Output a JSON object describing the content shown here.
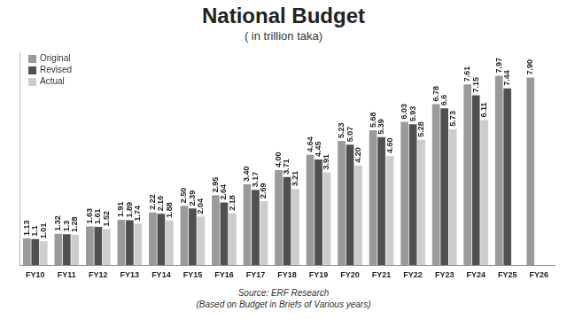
{
  "chart_data": {
    "type": "bar",
    "title": "National Budget",
    "subtitle": "( in trillion taka)",
    "annotations": [
      "Source: ERF Research",
      "(Based on Budget in Briefs of Various years)"
    ],
    "categories": [
      "FY10",
      "FY11",
      "FY12",
      "FY13",
      "FY14",
      "FY15",
      "FY16",
      "FY17",
      "FY18",
      "FY19",
      "FY20",
      "FY21",
      "FY22",
      "FY23",
      "FY24",
      "FY25",
      "FY26"
    ],
    "series": [
      {
        "name": "Original",
        "color": "#9a9a9a",
        "values": [
          1.13,
          1.32,
          1.63,
          1.91,
          2.22,
          2.5,
          2.95,
          3.4,
          4.0,
          4.64,
          5.23,
          5.68,
          6.03,
          6.78,
          7.61,
          7.97,
          7.9
        ],
        "value_labels": [
          "1.13",
          "1.32",
          "1.63",
          "1.91",
          "2.22",
          "2.50",
          "2.95",
          "3.40",
          "4.00",
          "4.64",
          "5.23",
          "5.68",
          "6.03",
          "6.78",
          "7.61",
          "7.97",
          "7.90"
        ]
      },
      {
        "name": "Revised",
        "color": "#505050",
        "values": [
          1.1,
          1.3,
          1.61,
          1.89,
          2.16,
          2.39,
          2.64,
          3.17,
          3.71,
          4.45,
          5.07,
          5.39,
          5.93,
          6.6,
          7.15,
          7.44,
          null
        ],
        "value_labels": [
          "1.1",
          "1.3",
          "1.61",
          "1.89",
          "2.16",
          "2.39",
          "2.64",
          "3.17",
          "3.71",
          "4.45",
          "5.07",
          "5.39",
          "5.93",
          "6.6",
          "7.15",
          "7.44",
          null
        ]
      },
      {
        "name": "Actual",
        "color": "#cdcdcd",
        "values": [
          1.01,
          1.28,
          1.52,
          1.74,
          1.88,
          2.04,
          2.18,
          2.69,
          3.21,
          3.91,
          4.2,
          4.6,
          5.28,
          5.73,
          6.11,
          null,
          null
        ],
        "value_labels": [
          "1.01",
          "1.28",
          "1.52",
          "1.74",
          "1.88",
          "2.04",
          "2.18",
          "2.69",
          "3.21",
          "3.91",
          "4.20",
          "4.60",
          "5.28",
          "5.73",
          "6.11",
          null,
          null
        ]
      }
    ],
    "ylim": [
      0,
      9
    ],
    "grid": false,
    "legend": "top-left",
    "data_labels": true,
    "tick_labels": "x"
  }
}
